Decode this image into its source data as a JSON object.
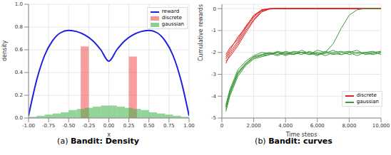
{
  "chart_data": [
    {
      "type": "histogram",
      "title": "(a) Bandit: Density",
      "x_label": "x",
      "y_label": "density",
      "xlim": [
        -1,
        1
      ],
      "xticks": [
        {
          "value": -1,
          "label": "-1.00"
        },
        {
          "value": -0.75,
          "label": "-0.75"
        },
        {
          "value": -0.5,
          "label": "-0.50"
        },
        {
          "value": -0.25,
          "label": "-0.25"
        },
        {
          "value": 0,
          "label": "0.00"
        },
        {
          "value": 0.25,
          "label": "0.25"
        },
        {
          "value": 0.5,
          "label": "0.50"
        },
        {
          "value": 0.75,
          "label": "0.75"
        },
        {
          "value": 1,
          "label": "1.00"
        }
      ],
      "ylim": [
        0,
        1
      ],
      "yticks": [
        {
          "value": 0,
          "label": "0.0"
        },
        0.2,
        0.4,
        0.6,
        0.8,
        {
          "value": 1,
          "label": "1.0"
        }
      ],
      "grid": true,
      "legend": "upper right",
      "series": [
        {
          "name": "reward",
          "type": "line",
          "color": "#1f1fe0",
          "x": [
            -1,
            -0.9,
            -0.8,
            -0.7,
            -0.6,
            -0.5,
            -0.4,
            -0.3,
            -0.2,
            -0.1,
            0,
            0.1,
            0.2,
            0.3,
            0.4,
            0.5,
            0.6,
            0.7,
            0.8,
            0.9,
            1
          ],
          "values": [
            0.02,
            0.33,
            0.55,
            0.68,
            0.75,
            0.77,
            0.76,
            0.73,
            0.68,
            0.6,
            0.5,
            0.6,
            0.68,
            0.73,
            0.76,
            0.77,
            0.75,
            0.68,
            0.55,
            0.33,
            0.02
          ]
        },
        {
          "name": "discrete",
          "type": "histogram",
          "color": "#f05050",
          "bins": [
            -0.35,
            -0.25,
            0.25,
            0.35
          ],
          "values": [
            0.63,
            0,
            0.54
          ]
        },
        {
          "name": "gaussian",
          "type": "histogram",
          "color": "#3cb043",
          "bins": [
            -1,
            -0.9,
            -0.8,
            -0.7,
            -0.6,
            -0.5,
            -0.4,
            -0.3,
            -0.2,
            -0.1,
            0,
            0.1,
            0.2,
            0.3,
            0.4,
            0.5,
            0.6,
            0.7,
            0.8,
            0.9,
            1
          ],
          "values": [
            0.01,
            0.02,
            0.03,
            0.04,
            0.05,
            0.07,
            0.08,
            0.09,
            0.1,
            0.11,
            0.11,
            0.1,
            0.09,
            0.08,
            0.07,
            0.05,
            0.04,
            0.03,
            0.02,
            0.01
          ]
        }
      ]
    },
    {
      "type": "line",
      "title": "(b) Bandit: curves",
      "x_label": "Time steps",
      "y_label": "Cumulative rewards",
      "x": [
        250,
        500,
        1000,
        1500,
        2000,
        2500,
        3000,
        3500,
        4000,
        4500,
        5000,
        5500,
        6000,
        6500,
        7000,
        7500,
        8000,
        8500,
        9000,
        9500,
        10000
      ],
      "xlim": [
        0,
        10000
      ],
      "xticks": [
        0,
        {
          "value": 2000,
          "label": "2,000"
        },
        {
          "value": 4000,
          "label": "4,000"
        },
        {
          "value": 6000,
          "label": "6,000"
        },
        {
          "value": 8000,
          "label": "8,000"
        },
        {
          "value": 10000,
          "label": "10,000"
        }
      ],
      "ylim": [
        -5,
        0.2
      ],
      "yticks": [
        -5,
        -4,
        -3,
        -2,
        -1,
        0
      ],
      "grid": true,
      "legend": "lower right",
      "series": [
        {
          "name": "discrete",
          "color": "#e02020",
          "values": [
            -2.3,
            -2.0,
            -1.5,
            -0.9,
            -0.4,
            -0.08,
            0,
            0,
            0,
            0,
            0,
            0,
            0,
            0,
            0,
            0,
            0,
            0,
            0,
            0,
            0
          ]
        },
        {
          "name": "discrete",
          "color": "#e02020",
          "values": [
            -2.5,
            -2.1,
            -1.6,
            -1.0,
            -0.5,
            -0.12,
            -0.01,
            0,
            0,
            0,
            0,
            0,
            0,
            0,
            0,
            0,
            0,
            0,
            0,
            0,
            0
          ]
        },
        {
          "name": "discrete",
          "color": "#e02020",
          "values": [
            -2.1,
            -1.8,
            -1.4,
            -0.8,
            -0.35,
            -0.05,
            0,
            0,
            0,
            0,
            0,
            0,
            0,
            0,
            0,
            0,
            0,
            0,
            0,
            0,
            0
          ]
        },
        {
          "name": "discrete",
          "color": "#e02020",
          "values": [
            -2.4,
            -2.2,
            -1.7,
            -1.1,
            -0.55,
            -0.15,
            -0.02,
            0,
            0,
            0,
            0,
            0,
            0,
            0,
            0,
            0,
            0,
            0,
            0,
            0,
            0
          ]
        },
        {
          "name": "discrete",
          "color": "#e02020",
          "values": [
            -2.2,
            -1.9,
            -1.3,
            -0.85,
            -0.3,
            -0.06,
            0,
            0,
            0,
            0,
            0,
            0,
            0,
            0,
            0,
            0,
            0,
            0,
            0,
            0,
            0
          ]
        },
        {
          "name": "gaussian",
          "color": "#3a9a3a",
          "values": [
            -4.5,
            -3.8,
            -2.9,
            -2.5,
            -2.2,
            -2.1,
            -2.0,
            -2.1,
            -1.95,
            -2.05,
            -2.0,
            -2.1,
            -1.9,
            -2.0,
            -2.1,
            -2.0,
            -1.95,
            -2.05,
            -2.0,
            -2.1,
            -2.0
          ]
        },
        {
          "name": "gaussian",
          "color": "#3a9a3a",
          "values": [
            -4.7,
            -4.0,
            -3.1,
            -2.6,
            -2.3,
            -2.2,
            -2.1,
            -2.0,
            -2.15,
            -2.0,
            -2.1,
            -1.95,
            -2.1,
            -2.05,
            -1.9,
            -2.1,
            -2.0,
            -2.15,
            -2.0,
            -1.95,
            -2.1
          ]
        },
        {
          "name": "gaussian",
          "color": "#3a9a3a",
          "values": [
            -4.4,
            -3.7,
            -2.8,
            -2.4,
            -2.15,
            -2.0,
            -2.05,
            -2.15,
            -2.0,
            -2.1,
            -1.9,
            -2.05,
            -2.0,
            -2.15,
            -2.0,
            -1.95,
            -2.1,
            -2.0,
            -2.05,
            -2.0,
            -1.95
          ]
        },
        {
          "name": "gaussian",
          "color": "#3a9a3a",
          "values": [
            -4.6,
            -3.9,
            -3.0,
            -2.55,
            -2.25,
            -2.15,
            -2.1,
            -1.95,
            -2.05,
            -2.1,
            -2.0,
            -2.0,
            -2.15,
            -1.95,
            -2.05,
            -2.1,
            -2.0,
            -1.9,
            -2.1,
            -2.05,
            -2.0
          ]
        },
        {
          "name": "gaussian",
          "color": "#3a9a3a",
          "values": [
            -4.5,
            -3.8,
            -2.95,
            -2.5,
            -2.2,
            -2.1,
            -2.05,
            -2.0,
            -2.1,
            -1.95,
            -2.0,
            -2.1,
            -2.05,
            -2.0,
            -1.6,
            -0.9,
            -0.3,
            -0.05,
            0,
            0,
            0
          ]
        }
      ]
    }
  ]
}
